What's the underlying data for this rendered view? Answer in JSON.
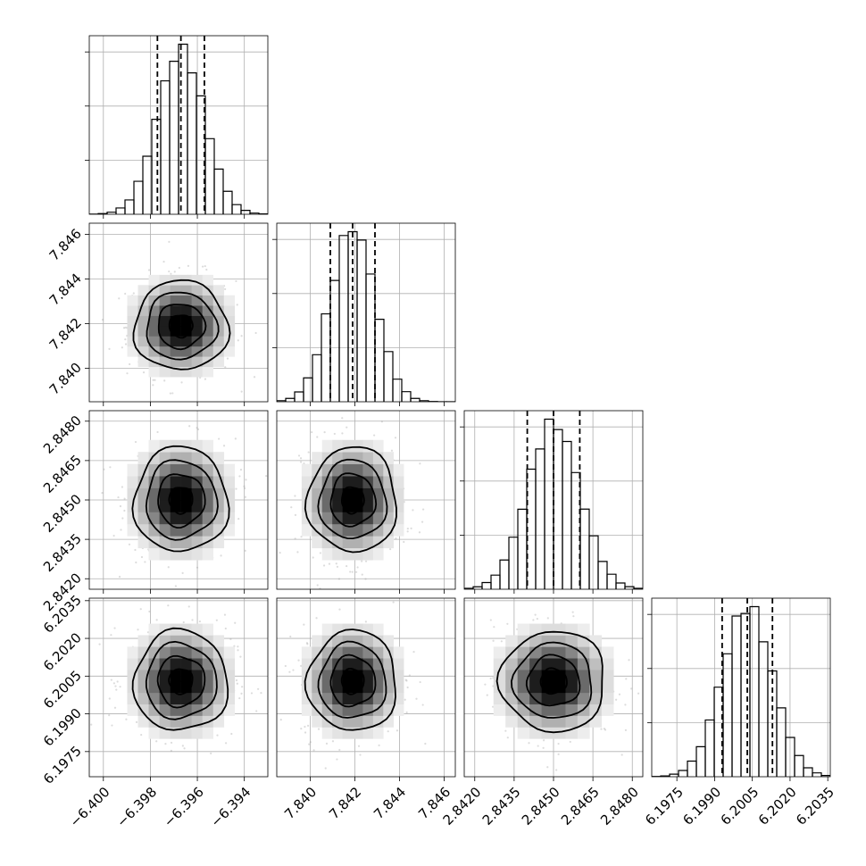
{
  "chart_data": {
    "type": "corner",
    "title": "",
    "parameters": [
      {
        "index": 0,
        "mean": -6.3967,
        "sd": 0.001,
        "range": [
          -6.4006,
          -6.393
        ],
        "ticks": [
          -6.4,
          -6.398,
          -6.396,
          -6.394
        ],
        "tick_labels": [
          "−6.400",
          "−6.398",
          "−6.396",
          "−6.394"
        ],
        "quantiles": [
          -6.3977,
          -6.3967,
          -6.3957
        ]
      },
      {
        "index": 1,
        "mean": 7.8419,
        "sd": 0.001,
        "range": [
          7.8385,
          7.8465
        ],
        "ticks": [
          7.84,
          7.842,
          7.844,
          7.846
        ],
        "tick_labels": [
          "7.840",
          "7.842",
          "7.844",
          "7.846"
        ],
        "quantiles": [
          7.8409,
          7.8419,
          7.8429
        ]
      },
      {
        "index": 2,
        "mean": 2.845,
        "sd": 0.001,
        "range": [
          2.8416,
          2.8484
        ],
        "ticks": [
          2.842,
          2.8435,
          2.845,
          2.8465,
          2.848
        ],
        "tick_labels": [
          "2.8420",
          "2.8435",
          "2.8450",
          "2.8465",
          "2.8480"
        ],
        "quantiles": [
          2.844,
          2.845,
          2.846
        ]
      },
      {
        "index": 3,
        "mean": 6.2003,
        "sd": 0.001,
        "range": [
          6.1965,
          6.2036
        ],
        "ticks": [
          6.1975,
          6.199,
          6.2005,
          6.202,
          6.2035
        ],
        "tick_labels": [
          "6.1975",
          "6.1990",
          "6.2005",
          "6.2020",
          "6.2035"
        ],
        "quantiles": [
          6.1993,
          6.2003,
          6.2013
        ]
      }
    ],
    "histogram_bins": 20,
    "grid": true,
    "legend": "none",
    "colors": {
      "line": "#000000",
      "grid": "#b0b0b0",
      "density_max": "#000000"
    }
  }
}
